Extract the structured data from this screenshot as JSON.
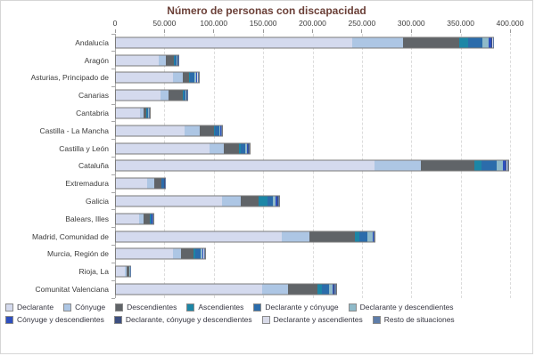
{
  "title": "Número de personas con discapacidad",
  "chart_data": {
    "type": "bar",
    "orientation": "horizontal",
    "stacked": true,
    "title": "Número de personas con discapacidad",
    "xlim": [
      0,
      400000
    ],
    "x_tick_labels": [
      "0",
      "50.000",
      "100.000",
      "150.000",
      "200.000",
      "250.000",
      "300.000",
      "350.000",
      "400.000"
    ],
    "grid": "vertical-dashed",
    "legend_position": "bottom",
    "categories": [
      "Andalucía",
      "Aragón",
      "Asturias, Principado de",
      "Canarias",
      "Cantabria",
      "Castilla - La Mancha",
      "Castilla y León",
      "Cataluña",
      "Extremadura",
      "Galicia",
      "Balears, Illes",
      "Madrid, Comunidad de",
      "Murcia, Región de",
      "Rioja, La",
      "Comunitat Valenciana"
    ],
    "series": [
      {
        "name": "Declarante",
        "color": "#d4daee",
        "values": [
          240000,
          45000,
          59000,
          46000,
          25500,
          71000,
          96000,
          263000,
          32500,
          108500,
          25000,
          169000,
          58500,
          10000,
          149000
        ]
      },
      {
        "name": "Cónyuge",
        "color": "#adc6e4",
        "values": [
          52500,
          7000,
          10000,
          9000,
          3900,
          15000,
          15000,
          47000,
          8000,
          19000,
          4200,
          28500,
          9000,
          2000,
          27000
        ]
      },
      {
        "name": "Descendientes",
        "color": "#606468",
        "values": [
          56500,
          8500,
          7000,
          14000,
          3000,
          15000,
          15500,
          54500,
          7000,
          19000,
          7000,
          46500,
          13000,
          3000,
          30000
        ]
      },
      {
        "name": "Ascendientes",
        "color": "#1c86a6",
        "values": [
          9000,
          900,
          1000,
          1200,
          500,
          1200,
          1800,
          7200,
          600,
          8500,
          400,
          4000,
          1200,
          200,
          4000
        ]
      },
      {
        "name": "Declarante y cónyuge",
        "color": "#2b6cab",
        "values": [
          14500,
          1900,
          4200,
          2000,
          1500,
          4000,
          4200,
          16000,
          2100,
          6000,
          1200,
          8500,
          5500,
          500,
          8000
        ]
      },
      {
        "name": "Declarante y descendientes",
        "color": "#8fbac9",
        "values": [
          6500,
          700,
          1500,
          800,
          500,
          1200,
          2000,
          6000,
          500,
          2300,
          500,
          5300,
          2000,
          200,
          3000
        ]
      },
      {
        "name": "Cónyuge y descendientes",
        "color": "#2e4fbe",
        "values": [
          2700,
          400,
          900,
          400,
          300,
          600,
          900,
          2700,
          300,
          1500,
          300,
          700,
          900,
          100,
          1200
        ]
      },
      {
        "name": "Declarante, cónyuge y descendientes",
        "color": "#3d4f80",
        "values": [
          1200,
          300,
          700,
          300,
          200,
          400,
          700,
          1000,
          200,
          1000,
          200,
          400,
          600,
          100,
          800
        ]
      },
      {
        "name": "Declarante y ascendientes",
        "color": "#d8dae8",
        "values": [
          600,
          200,
          400,
          200,
          100,
          300,
          500,
          500,
          100,
          500,
          100,
          200,
          300,
          100,
          400
        ]
      },
      {
        "name": "Resto de situaciones",
        "color": "#5e7da9",
        "values": [
          500,
          300,
          700,
          300,
          300,
          500,
          1000,
          1200,
          300,
          1000,
          600,
          500,
          700,
          100,
          1200
        ]
      }
    ]
  }
}
